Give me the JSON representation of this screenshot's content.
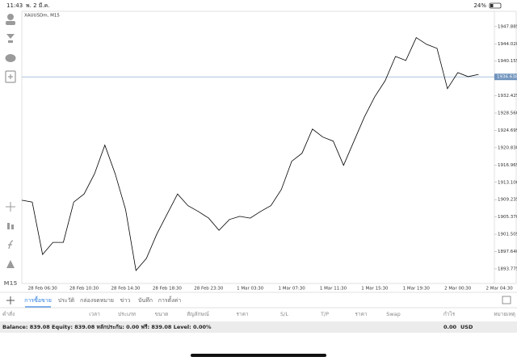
{
  "status_bar": {
    "time": "11:43",
    "date": "พ. 2 มี.ค.",
    "battery": "24%"
  },
  "sidebar": {
    "timeframe": "M15"
  },
  "chart_data": {
    "type": "line",
    "title": "XAUUSDm, M15",
    "categories": [
      null,
      null,
      "28 Feb 06:30",
      null,
      null,
      null,
      "28 Feb 10:30",
      null,
      null,
      null,
      "28 Feb 14:30",
      null,
      null,
      null,
      "28 Feb 18:30",
      null,
      null,
      null,
      "28 Feb 23:30",
      null,
      null,
      null,
      "1 Mar 03:30",
      null,
      null,
      null,
      "1 Mar 07:30",
      null,
      null,
      null,
      "1 Mar 11:30",
      null,
      null,
      null,
      "1 Mar 15:30",
      null,
      null,
      null,
      "1 Mar 19:30",
      null,
      null,
      null,
      "2 Mar 00:30",
      null,
      null,
      null,
      "2 Mar 04:30"
    ],
    "values": [
      1909.1,
      1908.7,
      1897.0,
      1899.7,
      1899.7,
      1908.7,
      1910.5,
      1915.0,
      1921.4,
      1915.0,
      1907.0,
      1893.4,
      1896.1,
      1901.5,
      1906.0,
      1910.5,
      1907.9,
      1906.6,
      1905.1,
      1902.4,
      1904.8,
      1905.5,
      1905.1,
      1906.6,
      1907.9,
      1911.5,
      1917.8,
      1919.6,
      1925.0,
      1923.2,
      1922.3,
      1916.9,
      1922.3,
      1927.7,
      1932.2,
      1935.8,
      1941.2,
      1940.3,
      1945.4,
      1943.9,
      1943.0,
      1934.0,
      1937.6,
      1936.7,
      1937.2,
      null,
      null
    ],
    "color": "#000000",
    "ylim": [
      1891.6,
      1951.1
    ],
    "yticks": [
      {
        "value": 1947.885,
        "label": "1947.885"
      },
      {
        "value": 1944.02,
        "label": "1944.020"
      },
      {
        "value": 1940.155,
        "label": "1940.155"
      },
      {
        "value": 1932.425,
        "label": "1932.425"
      },
      {
        "value": 1928.56,
        "label": "1928.560"
      },
      {
        "value": 1924.695,
        "label": "1924.695"
      },
      {
        "value": 1920.83,
        "label": "1920.830"
      },
      {
        "value": 1916.965,
        "label": "1916.965"
      },
      {
        "value": 1913.1,
        "label": "1913.100"
      },
      {
        "value": 1909.235,
        "label": "1909.235"
      },
      {
        "value": 1905.37,
        "label": "1905.370"
      },
      {
        "value": 1901.505,
        "label": "1901.505"
      },
      {
        "value": 1897.64,
        "label": "1897.640"
      },
      {
        "value": 1893.775,
        "label": "1893.775"
      }
    ],
    "price_line": {
      "value": 1936.638,
      "label": "1936.638"
    },
    "grid": false
  },
  "tabs": [
    "การซื้อขาย",
    "ประวัติ",
    "กล่องจดหมาย",
    "ข่าว",
    "บันทึก",
    "การตั้งค่า"
  ],
  "table": {
    "headers": [
      "คำสั่ง",
      "เวลา",
      "ประเภท",
      "ขนาด",
      "สัญลักษณ์",
      "ราคา",
      "S/L",
      "T/P",
      "ราคา",
      "Swap",
      "กำไร",
      "หมายเหตุ"
    ]
  },
  "footer": {
    "summary": "Balance: 839.08 Equity: 839.08 หลักประกัน: 0.00 ฟรี: 839.08 Level: 0.00%",
    "profit": "0.00",
    "currency": "USD"
  }
}
